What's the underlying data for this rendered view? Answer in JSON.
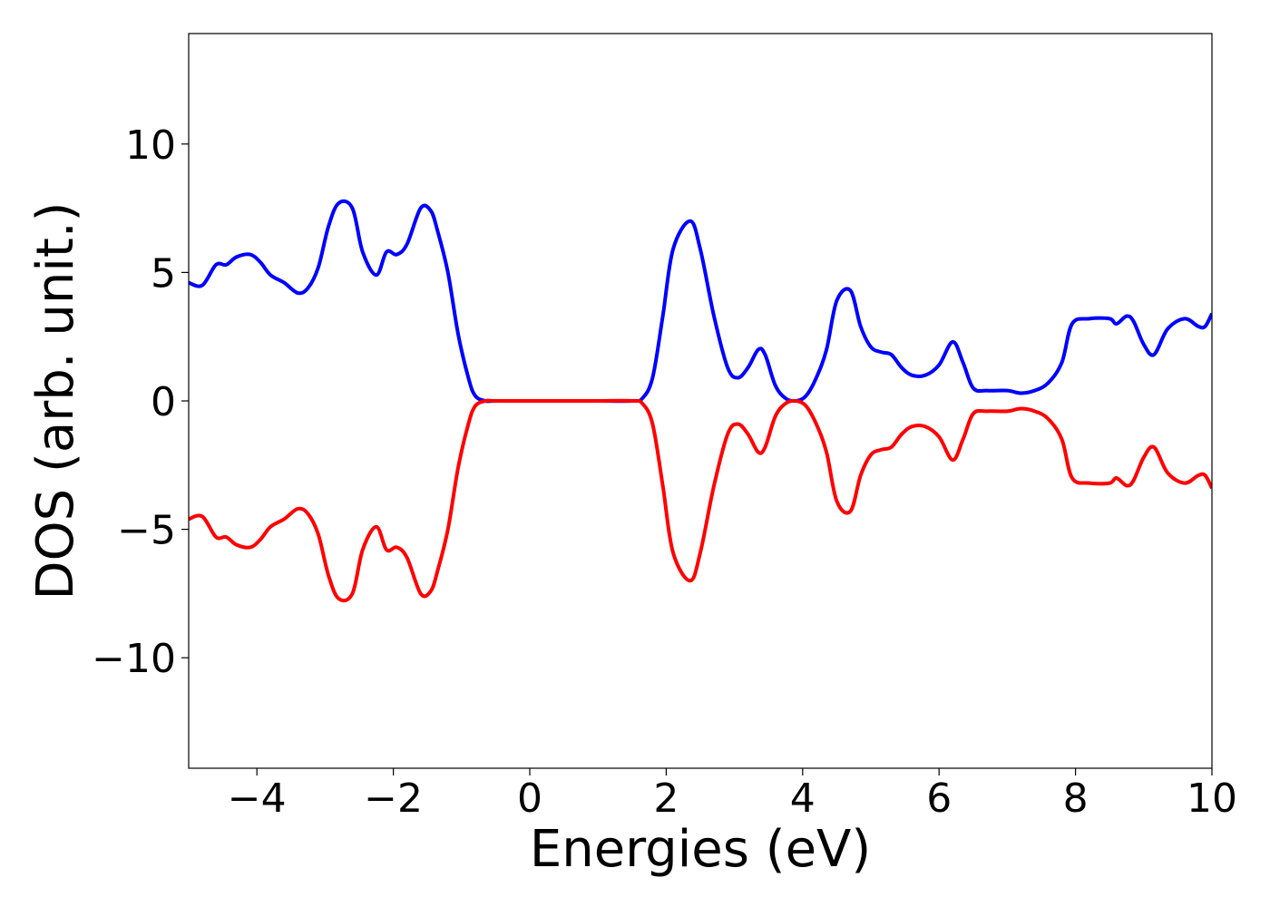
{
  "chart_data": {
    "type": "line",
    "title": "",
    "xlabel": "Energies (eV)",
    "ylabel": "DOS (arb. unit.)",
    "xlim": [
      -5,
      10
    ],
    "ylim": [
      -14.3,
      14.3
    ],
    "grid": false,
    "legend": "none",
    "x_ticks": [
      -4,
      -2,
      0,
      2,
      4,
      6,
      8,
      10
    ],
    "x_tick_labels": [
      "−4",
      "−2",
      "0",
      "2",
      "4",
      "6",
      "8",
      "10"
    ],
    "y_ticks": [
      10,
      5,
      0,
      -5,
      -10
    ],
    "y_tick_labels": [
      "10",
      "5",
      "0",
      "−5",
      "−10"
    ],
    "x": [
      -5.0,
      -4.8,
      -4.6,
      -4.45,
      -4.3,
      -4.1,
      -3.95,
      -3.8,
      -3.6,
      -3.4,
      -3.25,
      -3.1,
      -2.95,
      -2.8,
      -2.6,
      -2.45,
      -2.25,
      -2.1,
      -1.95,
      -1.8,
      -1.6,
      -1.45,
      -1.35,
      -1.2,
      -1.05,
      -0.9,
      -0.8,
      -0.65,
      -0.5,
      0.0,
      0.5,
      1.0,
      1.5,
      1.65,
      1.8,
      1.95,
      2.1,
      2.35,
      2.5,
      2.7,
      2.9,
      3.05,
      3.2,
      3.35,
      3.45,
      3.6,
      3.75,
      3.9,
      4.05,
      4.2,
      4.35,
      4.5,
      4.7,
      4.85,
      5.0,
      5.15,
      5.3,
      5.45,
      5.6,
      5.8,
      6.0,
      6.2,
      6.35,
      6.5,
      6.7,
      7.0,
      7.2,
      7.4,
      7.6,
      7.8,
      7.95,
      8.2,
      8.5,
      8.6,
      8.75,
      8.85,
      9.0,
      9.15,
      9.35,
      9.6,
      9.8,
      9.9,
      10.0
    ],
    "series": [
      {
        "color": "#0000ff",
        "values": [
          4.6,
          4.5,
          5.3,
          5.3,
          5.6,
          5.7,
          5.4,
          4.9,
          4.6,
          4.2,
          4.4,
          5.2,
          6.8,
          7.7,
          7.5,
          5.8,
          4.9,
          5.8,
          5.7,
          6.1,
          7.5,
          7.4,
          6.6,
          5.0,
          2.6,
          0.9,
          0.2,
          0.0,
          0.0,
          0.0,
          0.0,
          0.0,
          0.0,
          0.1,
          0.9,
          3.3,
          5.9,
          7.0,
          5.9,
          3.3,
          1.3,
          0.9,
          1.3,
          2.0,
          1.8,
          0.6,
          0.1,
          0.0,
          0.2,
          0.9,
          2.0,
          3.9,
          4.3,
          2.9,
          2.1,
          1.9,
          1.8,
          1.3,
          1.0,
          1.0,
          1.4,
          2.3,
          1.5,
          0.5,
          0.4,
          0.4,
          0.3,
          0.4,
          0.7,
          1.5,
          3.0,
          3.2,
          3.2,
          3.0,
          3.3,
          3.1,
          2.2,
          1.8,
          2.8,
          3.2,
          2.9,
          2.9,
          3.4
        ]
      },
      {
        "color": "#ff0000",
        "values": [
          -4.6,
          -4.5,
          -5.3,
          -5.3,
          -5.6,
          -5.7,
          -5.4,
          -4.9,
          -4.6,
          -4.2,
          -4.4,
          -5.2,
          -6.8,
          -7.7,
          -7.5,
          -5.8,
          -4.9,
          -5.8,
          -5.7,
          -6.1,
          -7.5,
          -7.4,
          -6.6,
          -5.0,
          -2.6,
          -0.9,
          -0.2,
          -0.0,
          -0.0,
          -0.0,
          -0.0,
          -0.0,
          -0.0,
          -0.1,
          -0.9,
          -3.3,
          -5.9,
          -7.0,
          -5.9,
          -3.3,
          -1.3,
          -0.9,
          -1.3,
          -2.0,
          -1.8,
          -0.6,
          -0.1,
          -0.0,
          -0.2,
          -0.9,
          -2.0,
          -3.9,
          -4.3,
          -2.9,
          -2.1,
          -1.9,
          -1.8,
          -1.3,
          -1.0,
          -1.0,
          -1.4,
          -2.3,
          -1.5,
          -0.5,
          -0.4,
          -0.4,
          -0.3,
          -0.4,
          -0.7,
          -1.5,
          -3.0,
          -3.2,
          -3.2,
          -3.0,
          -3.3,
          -3.1,
          -2.2,
          -1.8,
          -2.8,
          -3.2,
          -2.9,
          -2.9,
          -3.4
        ]
      }
    ]
  }
}
